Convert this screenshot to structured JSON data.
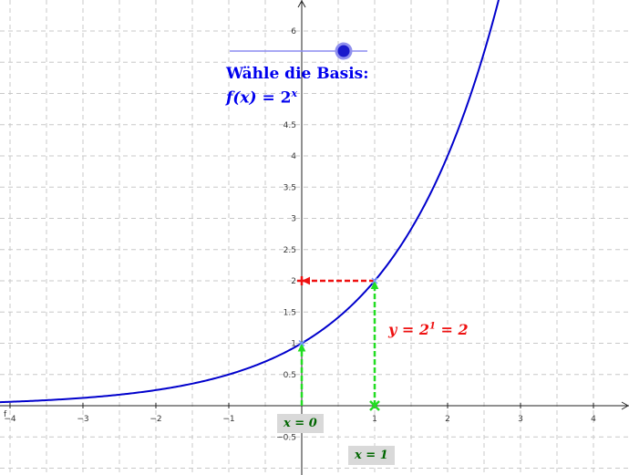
{
  "slider": {
    "label": "Wähle die Basis:",
    "value": 2
  },
  "function": {
    "prefix": "f(x) = ",
    "base": "2",
    "exponent": "x"
  },
  "annotation": {
    "prefix": "y = ",
    "base": "2",
    "exponent": "1",
    "suffix": " = 2"
  },
  "markers": {
    "x0": "x = 0",
    "x1": "x = 1"
  },
  "axis_label_f": "f",
  "colors": {
    "curve": "#0000cc",
    "horizontal_arrow": "#ee1111",
    "vertical_arrow": "#22dd22",
    "slider_knob": "#1a1acc"
  },
  "chart_data": {
    "type": "line",
    "grid": true,
    "xlim": [
      -4.15,
      4.4
    ],
    "ylim": [
      -1.05,
      6.55
    ],
    "x_ticks": [
      "−4",
      "−3",
      "−2",
      "−1",
      "1",
      "2",
      "3",
      "4"
    ],
    "y_ticks": [
      "−0.5",
      "0.5",
      "1",
      "1.5",
      "2",
      "2.5",
      "3",
      "3.5",
      "4",
      "4.5",
      "6"
    ],
    "series": [
      {
        "function": "2^x",
        "x": [
          -4.15,
          2.7
        ]
      }
    ],
    "points": [
      {
        "x": 0,
        "y": 1
      },
      {
        "x": 1,
        "y": 2
      },
      {
        "x": 0,
        "y": 2
      },
      {
        "x": 1,
        "y": 0
      }
    ],
    "arrows": [
      {
        "from": [
          0,
          0
        ],
        "to": [
          0,
          1
        ],
        "color": "green"
      },
      {
        "from": [
          1,
          0
        ],
        "to": [
          1,
          2
        ],
        "color": "green"
      },
      {
        "from": [
          1,
          2
        ],
        "to": [
          0,
          2
        ],
        "color": "red"
      }
    ]
  }
}
